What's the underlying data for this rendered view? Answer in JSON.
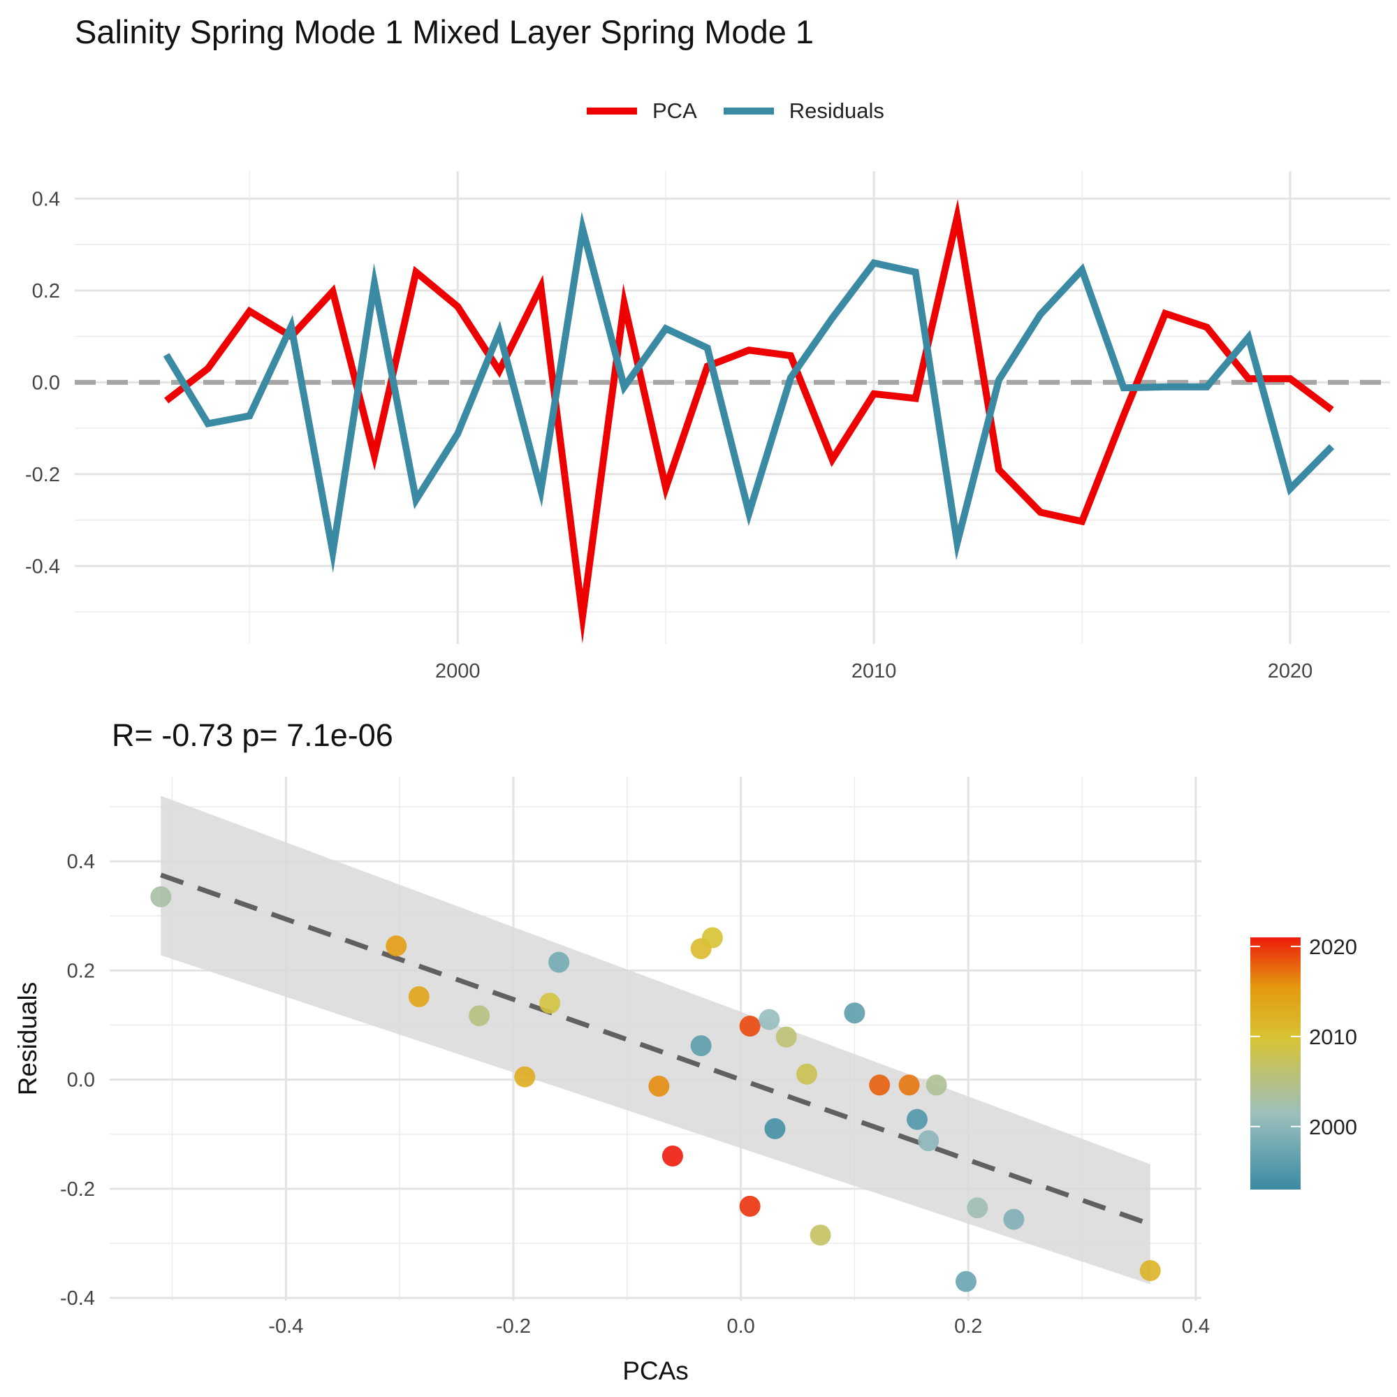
{
  "title": "Salinity Spring Mode 1 Mixed Layer Spring Mode 1",
  "legend": [
    {
      "label": "PCA",
      "color": "#ee0000"
    },
    {
      "label": "Residuals",
      "color": "#3a8aa3"
    }
  ],
  "chart_data": [
    {
      "type": "line",
      "title": "",
      "xlabel": "",
      "ylabel": "",
      "x_ticks": [
        "2000",
        "2010",
        "2020"
      ],
      "y_ticks": [
        "0.4",
        "0.2",
        "0.0",
        "-0.2",
        "-0.4"
      ],
      "xlim": [
        1990.8,
        2022.4
      ],
      "ylim": [
        -0.57,
        0.46
      ],
      "grid": true,
      "hline": {
        "y": 0,
        "style": "dashed",
        "color": "#a6a6a6"
      },
      "legend_position": "top",
      "x": [
        1993,
        1994,
        1995,
        1996,
        1997,
        1998,
        1999,
        2000,
        2001,
        2002,
        2003,
        2004,
        2005,
        2006,
        2007,
        2008,
        2009,
        2010,
        2011,
        2012,
        2013,
        2014,
        2015,
        2016,
        2017,
        2018,
        2019,
        2020,
        2021
      ],
      "series": [
        {
          "name": "PCA",
          "color": "#ee0000",
          "values": [
            -0.04,
            0.03,
            0.155,
            0.1,
            0.198,
            -0.16,
            0.24,
            0.165,
            0.025,
            0.208,
            -0.51,
            0.172,
            -0.23,
            0.035,
            0.07,
            0.058,
            -0.168,
            -0.025,
            -0.035,
            0.36,
            -0.19,
            -0.283,
            -0.303,
            -0.072,
            0.15,
            0.12,
            0.008,
            0.008,
            -0.06
          ]
        },
        {
          "name": "Residuals",
          "color": "#3a8aa3",
          "values": [
            0.06,
            -0.09,
            -0.073,
            0.122,
            -0.37,
            0.215,
            -0.256,
            -0.112,
            0.11,
            -0.235,
            0.335,
            -0.01,
            0.117,
            0.075,
            -0.285,
            0.01,
            0.14,
            0.26,
            0.24,
            -0.35,
            0.005,
            0.148,
            0.245,
            -0.012,
            -0.01,
            -0.01,
            0.098,
            -0.232,
            -0.14
          ]
        }
      ]
    },
    {
      "type": "scatter",
      "title": "R= -0.73  p= 7.1e-06",
      "xlabel": "PCAs",
      "ylabel": "Residuals",
      "x_ticks": [
        "-0.4",
        "-0.2",
        "0.0",
        "0.2",
        "0.4"
      ],
      "y_ticks": [
        "0.4",
        "0.2",
        "0.0",
        "-0.2",
        "-0.4"
      ],
      "xlim": [
        -0.555,
        0.405
      ],
      "ylim": [
        -0.405,
        0.555
      ],
      "grid": true,
      "trend": {
        "x": [
          -0.51,
          0.36
        ],
        "y": [
          0.375,
          -0.265
        ],
        "style": "dashed",
        "color": "#606060"
      },
      "confidence_band": {
        "x": [
          -0.51,
          0.36
        ],
        "upper": [
          0.52,
          -0.155
        ],
        "lower": [
          0.228,
          -0.375
        ],
        "color": "#d9d9d9"
      },
      "colorbar": {
        "labels": [
          "2020",
          "2010",
          "2000"
        ],
        "values": [
          2020,
          2010,
          2000
        ],
        "range": [
          1993,
          2021
        ],
        "colors": [
          "#3a8aa3",
          "#9cbfbd",
          "#d7c334",
          "#e49a10",
          "#ed1c0c"
        ],
        "position": "right"
      },
      "points": [
        {
          "x": -0.51,
          "y": 0.335,
          "year": 2003
        },
        {
          "x": -0.303,
          "y": 0.245,
          "year": 2015
        },
        {
          "x": -0.283,
          "y": 0.152,
          "year": 2014
        },
        {
          "x": -0.23,
          "y": 0.117,
          "year": 2005
        },
        {
          "x": -0.19,
          "y": 0.005,
          "year": 2013
        },
        {
          "x": -0.168,
          "y": 0.14,
          "year": 2009
        },
        {
          "x": -0.16,
          "y": 0.215,
          "year": 1998
        },
        {
          "x": -0.072,
          "y": -0.012,
          "year": 2016
        },
        {
          "x": -0.06,
          "y": -0.14,
          "year": 2021
        },
        {
          "x": -0.035,
          "y": 0.24,
          "year": 2011
        },
        {
          "x": -0.035,
          "y": 0.062,
          "year": 1996
        },
        {
          "x": -0.025,
          "y": 0.26,
          "year": 2010
        },
        {
          "x": 0.008,
          "y": 0.098,
          "year": 2019
        },
        {
          "x": 0.008,
          "y": -0.232,
          "year": 2020
        },
        {
          "x": 0.025,
          "y": 0.11,
          "year": 2001
        },
        {
          "x": 0.03,
          "y": -0.09,
          "year": 1994
        },
        {
          "x": 0.04,
          "y": 0.078,
          "year": 2006
        },
        {
          "x": 0.058,
          "y": 0.01,
          "year": 2008
        },
        {
          "x": 0.07,
          "y": -0.285,
          "year": 2007
        },
        {
          "x": 0.1,
          "y": 0.122,
          "year": 1996
        },
        {
          "x": 0.122,
          "y": -0.01,
          "year": 2018
        },
        {
          "x": 0.148,
          "y": -0.01,
          "year": 2017
        },
        {
          "x": 0.155,
          "y": -0.073,
          "year": 1995
        },
        {
          "x": 0.165,
          "y": -0.112,
          "year": 2000
        },
        {
          "x": 0.172,
          "y": -0.01,
          "year": 2004
        },
        {
          "x": 0.198,
          "y": -0.37,
          "year": 1997
        },
        {
          "x": 0.208,
          "y": -0.235,
          "year": 2002
        },
        {
          "x": 0.24,
          "y": -0.256,
          "year": 1999
        },
        {
          "x": 0.36,
          "y": -0.35,
          "year": 2012
        }
      ]
    }
  ]
}
